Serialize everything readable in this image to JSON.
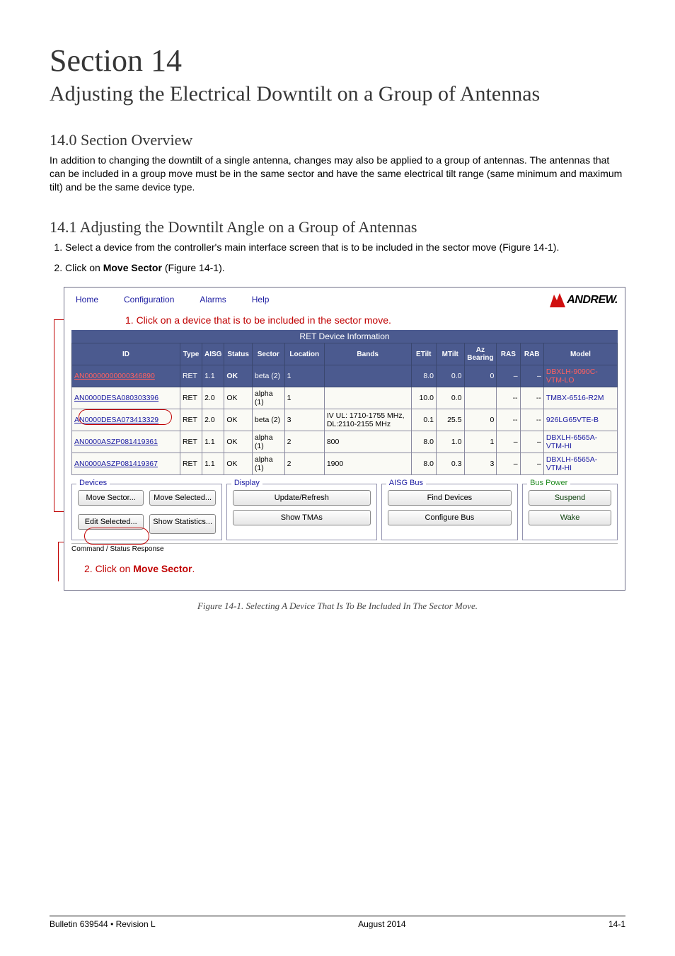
{
  "section": {
    "number_line": "Section 14",
    "subtitle": "Adjusting the Electrical Downtilt on a Group of Antennas"
  },
  "h_overview": "14.0 Section Overview",
  "p_overview": "In addition to changing the downtilt of a single antenna, changes may also be applied to a group of antennas. The antennas that can be included in a group move must be in the same sector and have the same electrical tilt range (same minimum and maximum tilt) and be the same device type.",
  "h_adjust": "14.1 Adjusting the Downtilt Angle on a Group of Antennas",
  "steps": [
    "Select a device from the controller's main interface screen that is to be included in the sector move (Figure 14-1).",
    "Click on <b>Move Sector</b> (Figure 14-1)."
  ],
  "app": {
    "menus": [
      "Home",
      "Configuration",
      "Alarms",
      "Help"
    ],
    "logo_text": "ANDREW.",
    "callout1": "1.  Click on a device that is to be included in the sector move.",
    "callout2": "2.  Click on <b>Move Sector</b>.",
    "grid_title": "RET Device Information",
    "columns": [
      "ID",
      "Type",
      "AISG",
      "Status",
      "Sector",
      "Location",
      "Bands",
      "ETilt",
      "MTilt",
      "Az Bearing",
      "RAS",
      "RAB",
      "Model"
    ],
    "col_widths": [
      "147",
      "30",
      "30",
      "38",
      "44",
      "54",
      "118",
      "34",
      "38",
      "44",
      "32",
      "32",
      "100"
    ],
    "rows": [
      {
        "id": "AN00000000000346890",
        "type": "RET",
        "aisg": "1.1",
        "status": "OK",
        "sector": "beta (2)",
        "loc": "1",
        "bands": "",
        "etilt": "8.0",
        "mtilt": "0.0",
        "az": "0",
        "ras": "–",
        "rab": "–",
        "model": "DBXLH-9090C-VTM-LO",
        "hl": true
      },
      {
        "id": "AN0000DESA080303396",
        "type": "RET",
        "aisg": "2.0",
        "status": "OK",
        "sector": "alpha (1)",
        "loc": "1",
        "bands": "",
        "etilt": "10.0",
        "mtilt": "0.0",
        "az": "",
        "ras": "--",
        "rab": "--",
        "model": "TMBX-6516-R2M"
      },
      {
        "id": "AN0000DESA073413329",
        "type": "RET",
        "aisg": "2.0",
        "status": "OK",
        "sector": "beta (2)",
        "loc": "3",
        "bands": "IV UL: 1710-1755 MHz, DL:2110-2155 MHz",
        "etilt": "0.1",
        "mtilt": "25.5",
        "az": "0",
        "ras": "--",
        "rab": "--",
        "model": "926LG65VTE-B"
      },
      {
        "id": "AN0000ASZP081419361",
        "type": "RET",
        "aisg": "1.1",
        "status": "OK",
        "sector": "alpha (1)",
        "loc": "2",
        "bands": "800",
        "etilt": "8.0",
        "mtilt": "1.0",
        "az": "1",
        "ras": "–",
        "rab": "–",
        "model": "DBXLH-6565A-VTM-HI"
      },
      {
        "id": "AN0000ASZP081419367",
        "type": "RET",
        "aisg": "1.1",
        "status": "OK",
        "sector": "alpha (1)",
        "loc": "2",
        "bands": "1900",
        "etilt": "8.0",
        "mtilt": "0.3",
        "az": "3",
        "ras": "–",
        "rab": "–",
        "model": "DBXLH-6565A-VTM-HI"
      }
    ],
    "panels": {
      "devices": {
        "label": "Devices",
        "buttons": [
          "Move Sector...",
          "Move Selected...",
          "Edit Selected...",
          "Show Statistics..."
        ]
      },
      "display": {
        "label": "Display",
        "buttons": [
          "Update/Refresh",
          "Show TMAs"
        ]
      },
      "aisg": {
        "label": "AISG Bus",
        "buttons": [
          "Find Devices",
          "Configure Bus"
        ]
      },
      "power": {
        "label": "Bus Power",
        "buttons": [
          "Suspend",
          "Wake"
        ]
      }
    },
    "status_strip": "Command / Status Response"
  },
  "figure_caption": "Figure 14-1.  Selecting A Device That Is To Be Included In The Sector Move.",
  "footer": {
    "left": "Bulletin 639544  •  Revision L",
    "center": "August 2014",
    "right": "14-1"
  },
  "colors": {
    "header_bg": "#4b5a8f",
    "callout": "#c00000",
    "link": "#1a1aa0"
  }
}
